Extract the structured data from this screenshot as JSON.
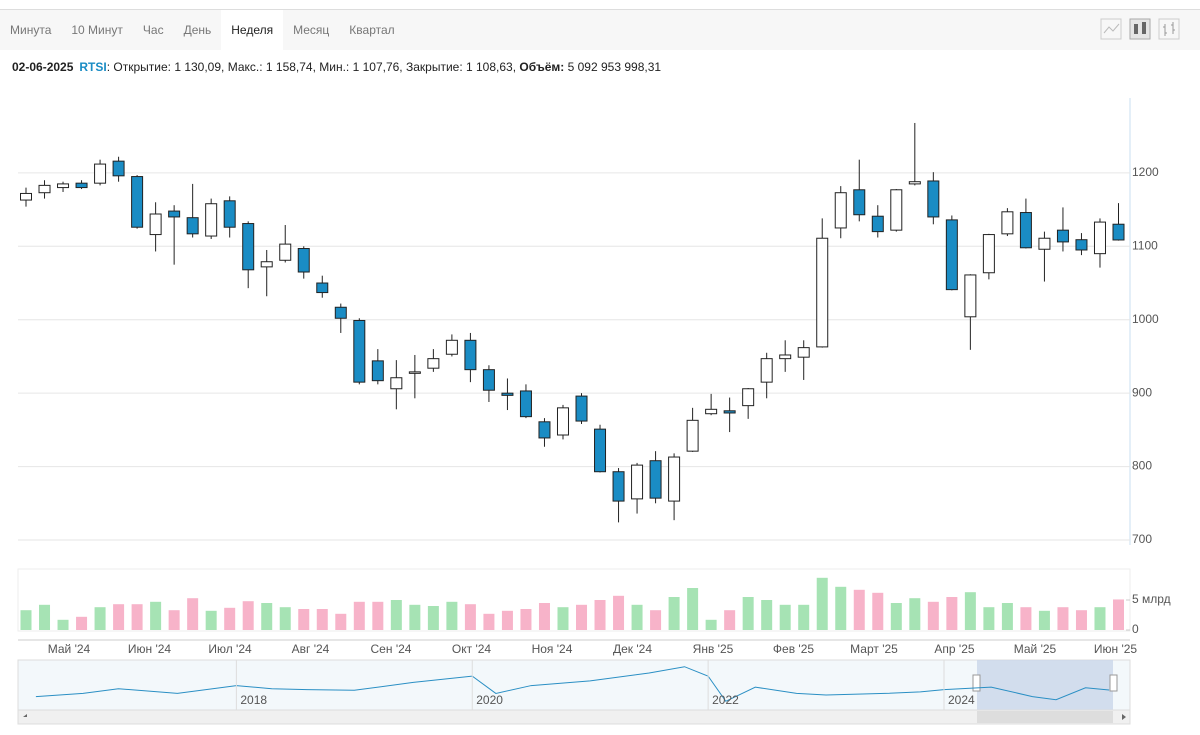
{
  "tabs": [
    "Минута",
    "10 Минут",
    "Час",
    "День",
    "Неделя",
    "Месяц",
    "Квартал"
  ],
  "active_tab": 4,
  "info": {
    "date": "02-06-2025",
    "symbol": "RTSI",
    "text": ": Открытие: 1 130,09, Макс.: 1 158,74, Мин.: 1 107,76, Закрытие: 1 108,63,",
    "volume_label": "Объём:",
    "volume_value": "5 092 953 998,31"
  },
  "chart_data": {
    "type": "candlestick",
    "open": [
      1163,
      1173,
      1180,
      1186,
      1186,
      1216,
      1195,
      1116,
      1148,
      1139,
      1114,
      1162,
      1131,
      1072,
      1081,
      1097,
      1050,
      1017,
      999,
      944,
      906,
      927,
      934,
      953,
      972,
      932,
      900,
      903,
      861,
      843,
      896,
      851,
      793,
      756,
      808,
      753,
      821,
      872,
      876,
      883,
      915,
      947,
      949,
      963,
      1125,
      1177,
      1141,
      1122,
      1185,
      1189,
      1136,
      1004,
      1064,
      1117,
      1146,
      1096,
      1122,
      1109,
      1090,
      1130.09
    ],
    "high": [
      1180,
      1190,
      1188,
      1190,
      1218,
      1222,
      1197,
      1160,
      1156,
      1185,
      1165,
      1168,
      1134,
      1095,
      1129,
      1100,
      1060,
      1022,
      1002,
      960,
      945,
      952,
      960,
      980,
      982,
      938,
      920,
      912,
      866,
      884,
      900,
      857,
      798,
      805,
      821,
      818,
      880,
      899,
      894,
      907,
      955,
      972,
      972,
      1138,
      1182,
      1218,
      1156,
      1178,
      1268,
      1201,
      1142,
      1062,
      1117,
      1152,
      1165,
      1120,
      1153,
      1118,
      1138,
      1158.74
    ],
    "low": [
      1154,
      1165,
      1174,
      1178,
      1183,
      1188,
      1124,
      1093,
      1075,
      1112,
      1110,
      1112,
      1043,
      1032,
      1078,
      1056,
      1030,
      982,
      912,
      912,
      878,
      893,
      929,
      950,
      915,
      888,
      877,
      866,
      827,
      837,
      858,
      792,
      724,
      736,
      750,
      727,
      820,
      870,
      847,
      865,
      893,
      929,
      918,
      962,
      1111,
      1134,
      1112,
      1120,
      1183,
      1130,
      1040,
      959,
      1055,
      1114,
      1097,
      1052,
      1093,
      1088,
      1071,
      1107.76
    ],
    "close": [
      1172,
      1183,
      1185,
      1180,
      1212,
      1196,
      1126,
      1144,
      1140,
      1117,
      1158,
      1126,
      1068,
      1079,
      1103,
      1065,
      1037,
      1002,
      915,
      917,
      921,
      929,
      947,
      972,
      932,
      904,
      897,
      868,
      839,
      880,
      862,
      793,
      753,
      802,
      757,
      813,
      863,
      878,
      873,
      906,
      947,
      952,
      962,
      1111,
      1173,
      1143,
      1120,
      1177,
      1188,
      1140,
      1041,
      1061,
      1116,
      1147,
      1098,
      1111,
      1106,
      1095,
      1133,
      1108.63
    ],
    "volume": [
      3.3,
      4.2,
      1.7,
      2.2,
      3.8,
      4.3,
      4.3,
      4.7,
      3.3,
      5.3,
      3.2,
      3.7,
      4.8,
      4.5,
      3.8,
      3.5,
      3.5,
      2.7,
      4.7,
      4.7,
      5.0,
      4.2,
      4.0,
      4.7,
      4.3,
      2.7,
      3.2,
      3.5,
      4.5,
      3.8,
      4.2,
      5.0,
      5.7,
      4.2,
      3.3,
      5.5,
      7.0,
      1.7,
      3.3,
      5.5,
      5.0,
      4.2,
      4.2,
      8.7,
      7.2,
      6.7,
      6.2,
      4.5,
      5.3,
      4.7,
      5.5,
      6.3,
      3.8,
      4.5,
      3.8,
      3.2,
      3.8,
      3.3,
      3.8,
      5.09
    ],
    "x_labels": [
      "Май '24",
      "Июн '24",
      "Июл '24",
      "Авг '24",
      "Сен '24",
      "Окт '24",
      "Ноя '24",
      "Дек '24",
      "Янв '25",
      "Фев '25",
      "Март '25",
      "Апр '25",
      "Май '25",
      "Июн '25"
    ],
    "ylim": [
      700,
      1302
    ],
    "yticks": [
      700,
      800,
      900,
      1000,
      1100,
      1200
    ],
    "volume_ylim": [
      0,
      10
    ],
    "volume_ticks": [
      0,
      {
        "value": 5,
        "label": "5 млрд"
      }
    ],
    "up_color": "#ffffff",
    "down_color": "#1a8cc4",
    "volume_up_color": "#a6e3b4",
    "volume_down_color": "#f7b3c9",
    "grid": true
  },
  "navigator": {
    "type": "line",
    "x": [
      2016.3,
      2016.7,
      2017,
      2017.5,
      2018,
      2018.3,
      2018.6,
      2019,
      2019.5,
      2020,
      2020.2,
      2020.5,
      2021,
      2021.5,
      2021.8,
      2022,
      2022.15,
      2022.4,
      2022.75,
      2023,
      2023.5,
      2023.8,
      2024,
      2024.4,
      2024.75,
      2024.95,
      2025.2,
      2025.4
    ],
    "values": [
      900,
      1000,
      1150,
      1000,
      1250,
      1150,
      1120,
      1100,
      1350,
      1550,
      1000,
      1250,
      1400,
      1650,
      1850,
      1550,
      750,
      1200,
      1000,
      950,
      1000,
      1050,
      1120,
      1200,
      900,
      800,
      1180,
      1110
    ],
    "xlim": [
      2016.25,
      2025.45
    ],
    "ylim": [
      600,
      2000
    ],
    "xticks": [
      2018,
      2020,
      2022,
      2024
    ],
    "color": "#2a8fc4"
  }
}
